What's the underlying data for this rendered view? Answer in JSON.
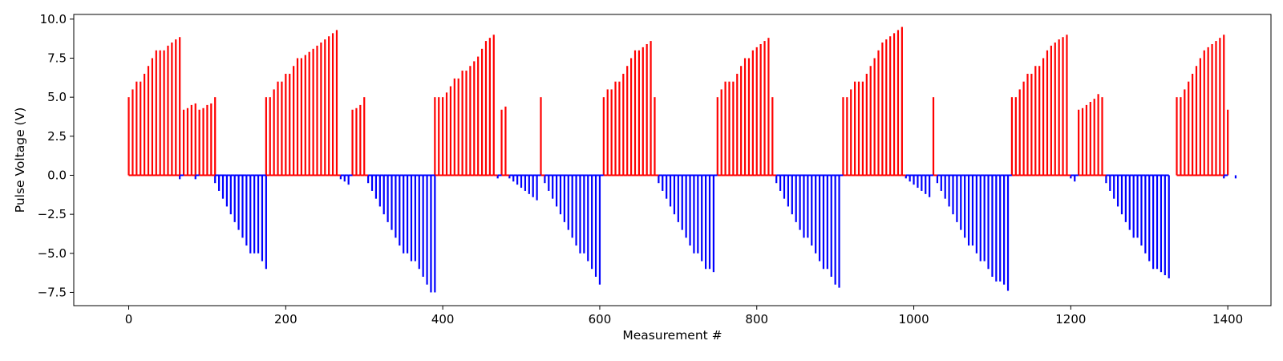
{
  "chart_data": {
    "type": "bar",
    "title": "",
    "xlabel": "Measurement #",
    "ylabel": "Pulse Voltage (V)",
    "xlim": [
      -70,
      1455
    ],
    "ylim": [
      -8.35,
      10.3
    ],
    "xticks": [
      0,
      200,
      400,
      600,
      800,
      1000,
      1200,
      1400
    ],
    "yticks": [
      -7.5,
      -5.0,
      -2.5,
      0.0,
      2.5,
      5.0,
      7.5,
      10.0
    ],
    "ytick_labels": [
      "−7.5",
      "−5.0",
      "−2.5",
      "0.0",
      "2.5",
      "5.0",
      "7.5",
      "10.0"
    ],
    "grid": false,
    "legend": "none",
    "colors": {
      "positive": "#ff0000",
      "negative": "#0000ff",
      "axis": "#000000"
    },
    "step": 5,
    "series": [
      {
        "start": 0,
        "values": [
          5,
          5.5,
          6,
          6,
          6.5,
          7,
          7.5,
          8,
          8,
          8,
          8.3,
          8.5,
          8.7,
          8.85
        ]
      },
      {
        "start": 65,
        "values": [
          -0.25
        ]
      },
      {
        "start": 70,
        "values": [
          4.2,
          4.3,
          4.5,
          4.6
        ]
      },
      {
        "start": 85,
        "values": [
          -0.25
        ]
      },
      {
        "start": 90,
        "values": [
          4.2,
          4.3,
          4.5,
          4.6,
          5
        ]
      },
      {
        "start": 110,
        "values": [
          -0.5,
          -1,
          -1.5,
          -2,
          -2.5,
          -3,
          -3.5,
          -4,
          -4.5,
          -5,
          -5,
          -5,
          -5.5,
          -6
        ]
      },
      {
        "start": 175,
        "values": [
          5,
          5,
          5.5,
          6,
          6,
          6.5,
          6.5,
          7,
          7.5,
          7.5,
          7.7,
          7.9,
          8.1,
          8.3,
          8.5,
          8.7,
          8.9,
          9.1,
          9.3
        ]
      },
      {
        "start": 270,
        "values": [
          -0.25,
          -0.4,
          -0.6
        ]
      },
      {
        "start": 285,
        "values": [
          4.2,
          4.3,
          4.5,
          5
        ]
      },
      {
        "start": 305,
        "values": [
          -0.5,
          -1,
          -1.5,
          -2,
          -2.5,
          -3,
          -3.5,
          -4,
          -4.5,
          -5,
          -5,
          -5.5,
          -5.5,
          -6,
          -6.5,
          -7,
          -7.5,
          -7.5
        ]
      },
      {
        "start": 390,
        "values": [
          5,
          5,
          5,
          5.3,
          5.7,
          6.2,
          6.2,
          6.7,
          6.7,
          7,
          7.3,
          7.6,
          8.1,
          8.6,
          8.8,
          9
        ]
      },
      {
        "start": 470,
        "values": [
          -0.2
        ]
      },
      {
        "start": 475,
        "values": [
          4.2,
          4.4
        ]
      },
      {
        "start": 485,
        "values": [
          -0.2,
          -0.4,
          -0.6,
          -0.8,
          -1,
          -1.2,
          -1.4,
          -1.6
        ]
      },
      {
        "start": 525,
        "values": [
          5
        ]
      },
      {
        "start": 530,
        "values": [
          -0.5,
          -1,
          -1.5,
          -2,
          -2.5,
          -3,
          -3.5,
          -4,
          -4.5,
          -5,
          -5,
          -5.5,
          -6,
          -6.5,
          -7
        ]
      },
      {
        "start": 605,
        "values": [
          5,
          5.5,
          5.5,
          6,
          6,
          6.5,
          7,
          7.5,
          8,
          8,
          8.2,
          8.4,
          8.6,
          5
        ]
      },
      {
        "start": 675,
        "values": [
          -0.5,
          -1,
          -1.5,
          -2,
          -2.5,
          -3,
          -3.5,
          -4,
          -4.5,
          -5,
          -5,
          -5.5,
          -6,
          -6,
          -6.2
        ]
      },
      {
        "start": 750,
        "values": [
          5,
          5.5,
          6,
          6,
          6,
          6.5,
          7,
          7.5,
          7.5,
          8,
          8.2,
          8.4,
          8.6,
          8.8,
          5
        ]
      },
      {
        "start": 825,
        "values": [
          -0.5,
          -1,
          -1.5,
          -2,
          -2.5,
          -3,
          -3.5,
          -4,
          -4,
          -4.5,
          -5,
          -5.5,
          -6,
          -6,
          -6.5,
          -7,
          -7.2
        ]
      },
      {
        "start": 910,
        "values": [
          5,
          5,
          5.5,
          6,
          6,
          6,
          6.5,
          7,
          7.5,
          8,
          8.5,
          8.7,
          8.9,
          9.1,
          9.3,
          9.5
        ]
      },
      {
        "start": 990,
        "values": [
          -0.2,
          -0.4,
          -0.6,
          -0.8,
          -1,
          -1.2,
          -1.4
        ]
      },
      {
        "start": 1025,
        "values": [
          5
        ]
      },
      {
        "start": 1030,
        "values": [
          -0.5,
          -1,
          -1.5,
          -2,
          -2.5,
          -3,
          -3.5,
          -4,
          -4.5,
          -4.5,
          -5,
          -5.5,
          -5.5,
          -6,
          -6.5,
          -6.8,
          -6.8,
          -7,
          -7.4
        ]
      },
      {
        "start": 1125,
        "values": [
          5,
          5,
          5.5,
          6,
          6.5,
          6.5,
          7,
          7,
          7.5,
          8,
          8.3,
          8.5,
          8.7,
          8.85,
          9
        ]
      },
      {
        "start": 1200,
        "values": [
          -0.2,
          -0.4
        ]
      },
      {
        "start": 1210,
        "values": [
          4.2,
          4.3,
          4.5,
          4.7,
          4.9,
          5.2,
          5
        ]
      },
      {
        "start": 1245,
        "values": [
          -0.5,
          -1,
          -1.5,
          -2,
          -2.5,
          -3,
          -3.5,
          -4,
          -4,
          -4.5,
          -5,
          -5.5,
          -6,
          -6,
          -6.2,
          -6.4,
          -6.6
        ]
      },
      {
        "start": 1335,
        "values": [
          5,
          5,
          5.5,
          6,
          6.5,
          7,
          7.5,
          8,
          8.2,
          8.4,
          8.6,
          8.8,
          9
        ]
      },
      {
        "start": 1400,
        "values": [
          4.2
        ]
      },
      {
        "start": 1395,
        "values": [
          -0.2
        ]
      },
      {
        "start": 1410,
        "values": [
          -0.2
        ]
      }
    ]
  }
}
